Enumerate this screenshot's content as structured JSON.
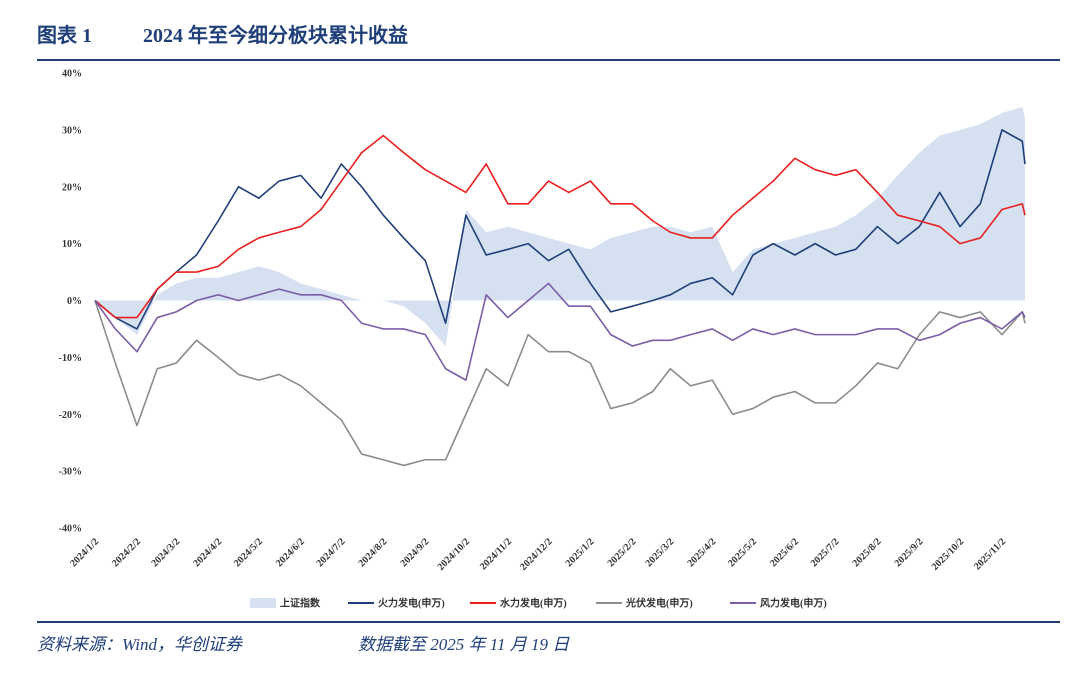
{
  "chart_data": {
    "type": "line",
    "title_label": "图表 1",
    "title": "2024 年至今细分板块累计收益",
    "source": "资料来源：Wind，华创证券",
    "note": "数据截至 2025 年 11 月 19 日",
    "x": [
      "2024/1/2",
      "2024/1/17",
      "2024/2/2",
      "2024/2/17",
      "2024/3/2",
      "2024/3/17",
      "2024/4/2",
      "2024/4/17",
      "2024/5/2",
      "2024/5/17",
      "2024/6/2",
      "2024/6/17",
      "2024/7/2",
      "2024/7/17",
      "2024/8/2",
      "2024/8/17",
      "2024/9/2",
      "2024/9/17",
      "2024/10/2",
      "2024/10/17",
      "2024/11/2",
      "2024/11/17",
      "2024/12/2",
      "2024/12/17",
      "2025/1/2",
      "2025/1/17",
      "2025/2/2",
      "2025/2/17",
      "2025/3/2",
      "2025/3/17",
      "2025/4/2",
      "2025/4/17",
      "2025/5/2",
      "2025/5/17",
      "2025/6/2",
      "2025/6/17",
      "2025/7/2",
      "2025/7/17",
      "2025/8/2",
      "2025/8/17",
      "2025/9/2",
      "2025/9/17",
      "2025/10/2",
      "2025/10/17",
      "2025/11/2",
      "2025/11/17",
      "2025/11/19"
    ],
    "xlim": [
      "2024/1/2",
      "2025/11/19"
    ],
    "xticks": [
      "2024/1/2",
      "2024/2/2",
      "2024/3/2",
      "2024/4/2",
      "2024/5/2",
      "2024/6/2",
      "2024/7/2",
      "2024/8/2",
      "2024/9/2",
      "2024/10/2",
      "2024/11/2",
      "2024/12/2",
      "2025/1/2",
      "2025/2/2",
      "2025/3/2",
      "2025/4/2",
      "2025/5/2",
      "2025/6/2",
      "2025/7/2",
      "2025/8/2",
      "2025/9/2",
      "2025/10/2",
      "2025/11/2"
    ],
    "ylim": [
      -40,
      40
    ],
    "yticks": [
      {
        "value": 40,
        "label": "40%"
      },
      {
        "value": 30,
        "label": "30%"
      },
      {
        "value": 20,
        "label": "20%"
      },
      {
        "value": 10,
        "label": "10%"
      },
      {
        "value": 0,
        "label": "0%"
      },
      {
        "value": -10,
        "label": "-10%"
      },
      {
        "value": -20,
        "label": "-20%"
      },
      {
        "value": -30,
        "label": "-30%"
      },
      {
        "value": -40,
        "label": "-40%"
      }
    ],
    "series": [
      {
        "name": "上证指数",
        "type": "area",
        "color": "#d5e0f1",
        "values": [
          0,
          -3,
          -6,
          1,
          3,
          4,
          4,
          5,
          6,
          5,
          3,
          2,
          1,
          0,
          0,
          -1,
          -4,
          -8,
          16,
          12,
          13,
          12,
          11,
          10,
          9,
          11,
          12,
          13,
          13,
          12,
          13,
          5,
          9,
          10,
          11,
          12,
          13,
          15,
          18,
          22,
          26,
          29,
          30,
          31,
          33,
          34,
          32
        ]
      },
      {
        "name": "火力发电(申万)",
        "color": "#1f3f7a",
        "values": [
          0,
          -3,
          -5,
          2,
          5,
          8,
          14,
          20,
          18,
          21,
          22,
          18,
          24,
          20,
          15,
          11,
          7,
          -4,
          15,
          8,
          9,
          10,
          7,
          9,
          3,
          -2,
          -1,
          0,
          1,
          3,
          4,
          1,
          8,
          10,
          8,
          10,
          8,
          9,
          13,
          10,
          13,
          19,
          13,
          17,
          30,
          28,
          24
        ]
      },
      {
        "name": "水力发电(申万)",
        "color": "#e8201f",
        "values": [
          0,
          -3,
          -3,
          2,
          5,
          5,
          6,
          9,
          11,
          12,
          13,
          16,
          21,
          26,
          29,
          26,
          23,
          21,
          19,
          24,
          17,
          17,
          21,
          19,
          21,
          17,
          17,
          14,
          12,
          11,
          11,
          15,
          18,
          21,
          25,
          23,
          22,
          23,
          19,
          15,
          14,
          13,
          10,
          11,
          16,
          17,
          15
        ]
      },
      {
        "name": "光伏发电(申万)",
        "color": "#8c8c8c",
        "values": [
          0,
          -11,
          -22,
          -12,
          -11,
          -7,
          -10,
          -13,
          -14,
          -13,
          -15,
          -18,
          -21,
          -27,
          -28,
          -29,
          -28,
          -28,
          -20,
          -12,
          -15,
          -6,
          -9,
          -9,
          -11,
          -19,
          -18,
          -16,
          -12,
          -15,
          -14,
          -20,
          -19,
          -17,
          -16,
          -18,
          -18,
          -15,
          -11,
          -12,
          -6,
          -2,
          -3,
          -2,
          -6,
          -2,
          -4
        ]
      },
      {
        "name": "风力发电(申万)",
        "color": "#7b5ea7",
        "values": [
          0,
          -5,
          -9,
          -3,
          -2,
          0,
          1,
          0,
          1,
          2,
          1,
          1,
          0,
          -4,
          -5,
          -5,
          -6,
          -12,
          -14,
          1,
          -3,
          0,
          3,
          -1,
          -1,
          -6,
          -8,
          -7,
          -7,
          -6,
          -5,
          -7,
          -5,
          -6,
          -5,
          -6,
          -6,
          -6,
          -5,
          -5,
          -7,
          -6,
          -4,
          -3,
          -5,
          -2,
          -3
        ]
      }
    ]
  }
}
